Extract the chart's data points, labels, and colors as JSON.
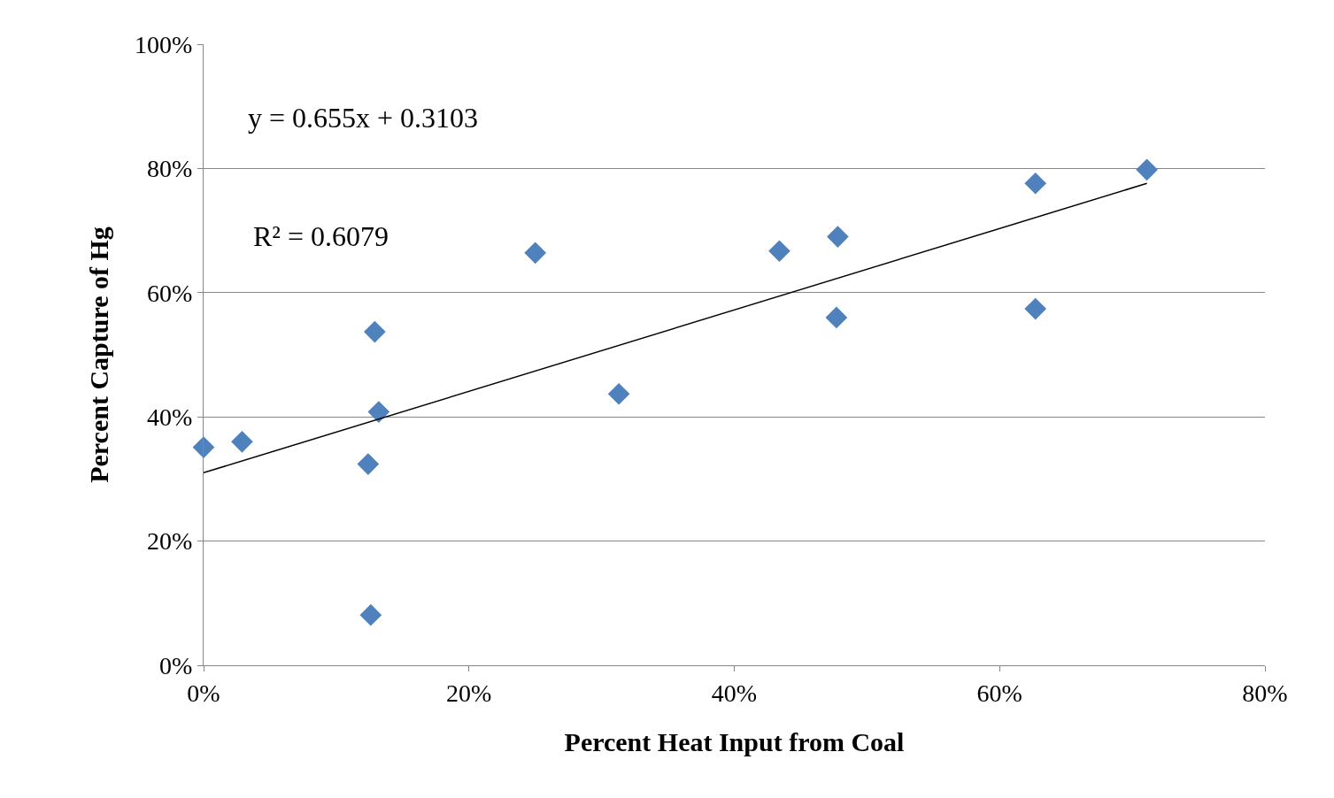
{
  "chart_data": {
    "type": "scatter",
    "xlabel": "Percent Heat Input from Coal",
    "ylabel": "Percent Capture of Hg",
    "xlim": [
      0,
      80
    ],
    "ylim": [
      0,
      100
    ],
    "xticks": [
      {
        "value": 0,
        "label": "0%"
      },
      {
        "value": 20,
        "label": "20%"
      },
      {
        "value": 40,
        "label": "40%"
      },
      {
        "value": 60,
        "label": "60%"
      },
      {
        "value": 80,
        "label": "80%"
      }
    ],
    "yticks": [
      {
        "value": 0,
        "label": "0%"
      },
      {
        "value": 20,
        "label": "20%"
      },
      {
        "value": 40,
        "label": "40%"
      },
      {
        "value": 60,
        "label": "60%"
      },
      {
        "value": 80,
        "label": "80%"
      },
      {
        "value": 100,
        "label": "100%"
      }
    ],
    "grid": "y",
    "marker": "diamond",
    "series": [
      {
        "color": "#4f81bd",
        "x": [
          0,
          2.9,
          12.9,
          13.2,
          12.4,
          12.6,
          25.0,
          31.3,
          43.4,
          47.8,
          47.7,
          62.7,
          62.7,
          71.1
        ],
        "values": [
          35.1,
          36.0,
          53.7,
          40.8,
          32.4,
          8.1,
          66.4,
          43.7,
          66.7,
          69.0,
          56.0,
          77.6,
          57.4,
          79.8
        ]
      },
      {
        "type": "line",
        "color": "#000000",
        "marker": "none",
        "x": [
          0,
          71.1
        ],
        "values": [
          31.0,
          77.6
        ]
      }
    ],
    "annotations": [
      "y = 0.655x + 0.3103",
      "R² = 0.6079"
    ]
  }
}
